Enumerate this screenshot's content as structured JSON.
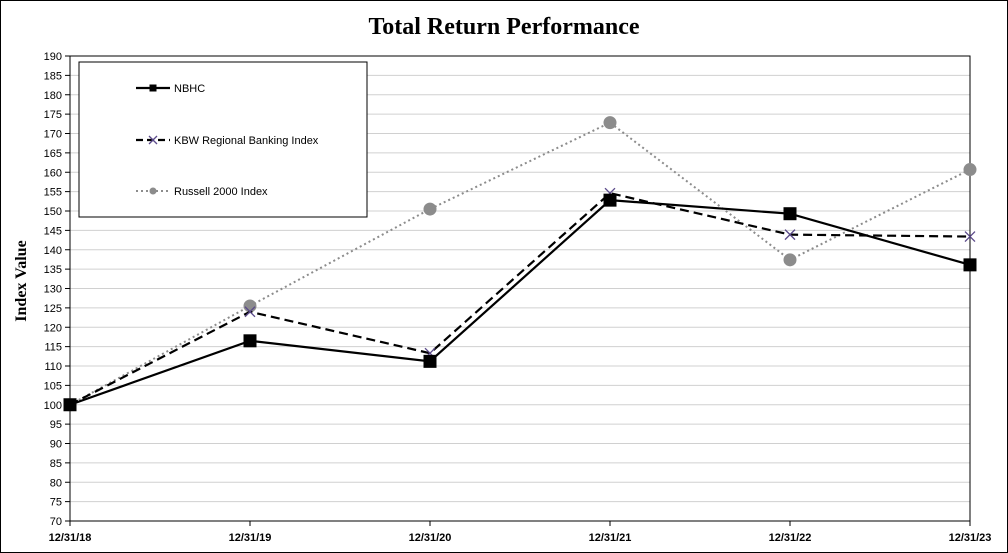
{
  "chart_data": {
    "type": "line",
    "title": "Total Return Performance",
    "xlabel": "",
    "ylabel": "Index Value",
    "categories": [
      "12/31/18",
      "12/31/19",
      "12/31/20",
      "12/31/21",
      "12/31/22",
      "12/31/23"
    ],
    "ylim": [
      70,
      190
    ],
    "ytick_step": 5,
    "grid": true,
    "legend_position": "top-left",
    "series": [
      {
        "name": "NBHC",
        "values": [
          100,
          116.5,
          111.2,
          152.8,
          149.3,
          136.1
        ],
        "color": "#000000",
        "style": "solid",
        "marker": "square"
      },
      {
        "name": "KBW Regional Banking Index",
        "values": [
          100,
          124.0,
          113.3,
          154.6,
          143.9,
          143.4
        ],
        "color": "#000000",
        "style": "dashed",
        "marker": "x"
      },
      {
        "name": "Russell 2000 Index",
        "values": [
          100,
          125.5,
          150.5,
          172.8,
          137.4,
          160.7
        ],
        "color": "#8c8c8c",
        "style": "dotted",
        "marker": "circle"
      }
    ]
  }
}
